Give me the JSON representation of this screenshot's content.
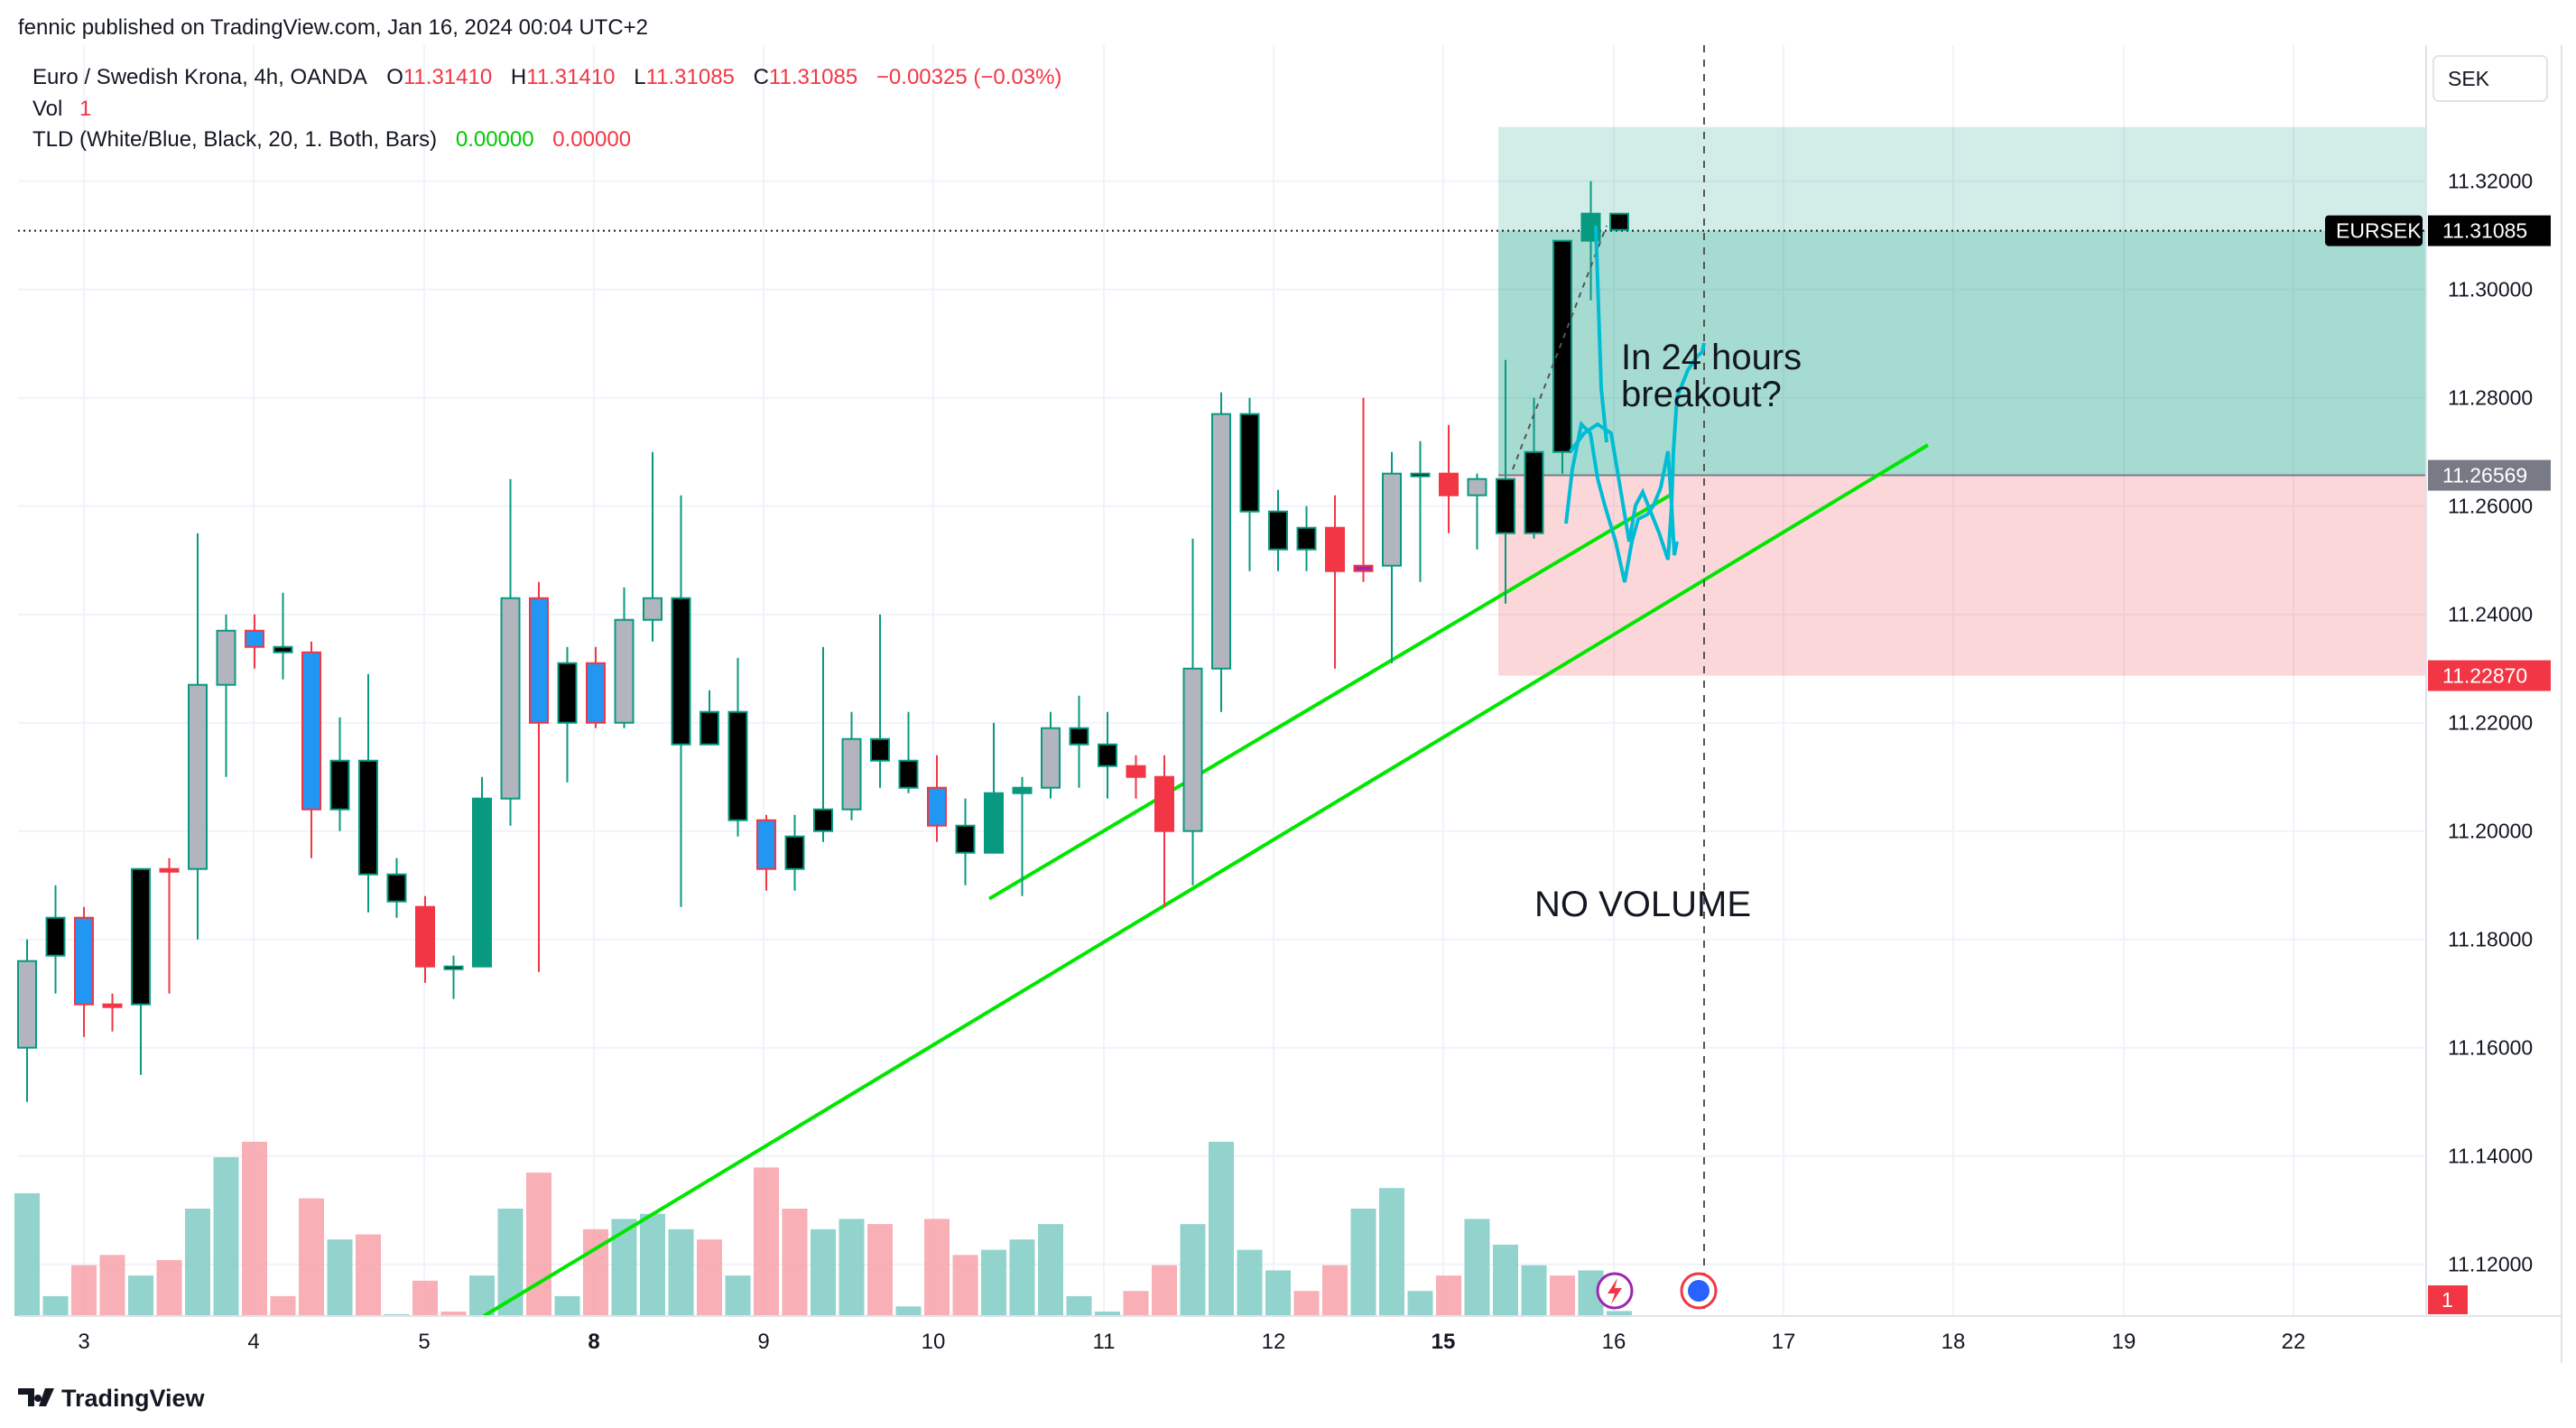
{
  "header": {
    "published_by": "fennic published on TradingView.com, Jan 16, 2024 00:04 UTC+2"
  },
  "legend": {
    "symbol_line": "Euro / Swedish Krona, 4h, OANDA",
    "ohlc": [
      {
        "label": "O",
        "value": "11.31410"
      },
      {
        "label": "H",
        "value": "11.31410"
      },
      {
        "label": "L",
        "value": "11.31085"
      },
      {
        "label": "C",
        "value": "11.31085"
      }
    ],
    "change": "−0.00325 (−0.03%)",
    "vol_label": "Vol",
    "vol_value": "1",
    "indicator_name": "TLD (White/Blue, Black, 20, 1. Both, Bars)",
    "indicator_value_1": "0.00000",
    "indicator_value_2": "0.00000"
  },
  "price_axis": {
    "currency": "SEK",
    "ticks": [
      "11.32000",
      "11.30000",
      "11.28000",
      "11.26000",
      "11.24000",
      "11.22000",
      "11.20000",
      "11.18000",
      "11.16000",
      "11.14000",
      "11.12000"
    ],
    "symbol_tag": "EURSEK",
    "last_price": "11.31085",
    "entry_price": "11.26569",
    "stop_price": "11.22870",
    "volume_tag": "1"
  },
  "time_axis": {
    "labels": [
      {
        "text": "3",
        "bold": false
      },
      {
        "text": "4",
        "bold": false
      },
      {
        "text": "5",
        "bold": false
      },
      {
        "text": "8",
        "bold": true
      },
      {
        "text": "9",
        "bold": false
      },
      {
        "text": "10",
        "bold": false
      },
      {
        "text": "11",
        "bold": false
      },
      {
        "text": "12",
        "bold": false
      },
      {
        "text": "15",
        "bold": true
      },
      {
        "text": "16",
        "bold": false
      },
      {
        "text": "17",
        "bold": false
      },
      {
        "text": "18",
        "bold": false
      },
      {
        "text": "19",
        "bold": false
      },
      {
        "text": "22",
        "bold": false
      }
    ]
  },
  "annotations": {
    "note_line1": "In 24 hours",
    "note_line2": "breakout?",
    "no_volume": "NO VOLUME"
  },
  "footer": {
    "brand": "TradingView"
  },
  "colors": {
    "up": "#089981",
    "down": "#f23645",
    "blue_candle": "#2196f3",
    "white_candle": "#b2b5be",
    "black_candle": "#000000",
    "trendline": "#00e600",
    "projection": "#00bcd4",
    "target_zone": "#089981",
    "stop_zone": "#f23645",
    "vol_up": "#80cbc4",
    "vol_down": "#f7a1a8"
  },
  "chart_data": {
    "type": "candlestick",
    "symbol": "EURSEK",
    "interval": "4h",
    "y_range": [
      11.11,
      11.33
    ],
    "candles": [
      {
        "o": 11.16,
        "h": 11.18,
        "l": 11.15,
        "c": 11.176,
        "f": "white",
        "v": 1230
      },
      {
        "o": 11.177,
        "h": 11.19,
        "l": 11.17,
        "c": 11.184,
        "f": "black",
        "v": 1030
      },
      {
        "o": 11.184,
        "h": 11.186,
        "l": 11.162,
        "c": 11.168,
        "f": "blue",
        "v": 1090
      },
      {
        "o": 11.168,
        "h": 11.17,
        "l": 11.163,
        "c": 11.168,
        "f": "down",
        "v": 1110
      },
      {
        "o": 11.168,
        "h": 11.193,
        "l": 11.155,
        "c": 11.193,
        "f": "black",
        "v": 1070
      },
      {
        "o": 11.193,
        "h": 11.195,
        "l": 11.17,
        "c": 11.193,
        "f": "down",
        "v": 1100
      },
      {
        "o": 11.193,
        "h": 11.255,
        "l": 11.18,
        "c": 11.227,
        "f": "white",
        "v": 1200
      },
      {
        "o": 11.227,
        "h": 11.24,
        "l": 11.21,
        "c": 11.237,
        "f": "white",
        "v": 1300
      },
      {
        "o": 11.237,
        "h": 11.24,
        "l": 11.23,
        "c": 11.234,
        "f": "blue",
        "v": 1330
      },
      {
        "o": 11.234,
        "h": 11.244,
        "l": 11.228,
        "c": 11.233,
        "f": "black",
        "v": 1030
      },
      {
        "o": 11.233,
        "h": 11.235,
        "l": 11.195,
        "c": 11.204,
        "f": "blue",
        "v": 1220
      },
      {
        "o": 11.204,
        "h": 11.221,
        "l": 11.2,
        "c": 11.213,
        "f": "black",
        "v": 1140
      },
      {
        "o": 11.213,
        "h": 11.229,
        "l": 11.185,
        "c": 11.192,
        "f": "black",
        "v": 1150
      },
      {
        "o": 11.192,
        "h": 11.195,
        "l": 11.184,
        "c": 11.187,
        "f": "black",
        "v": 970
      },
      {
        "o": 11.186,
        "h": 11.188,
        "l": 11.172,
        "c": 11.175,
        "f": "down",
        "v": 1060
      },
      {
        "o": 11.175,
        "h": 11.177,
        "l": 11.169,
        "c": 11.175,
        "f": "black",
        "v": 1000
      },
      {
        "o": 11.175,
        "h": 11.21,
        "l": 11.175,
        "c": 11.206,
        "f": "up",
        "v": 1070
      },
      {
        "o": 11.206,
        "h": 11.265,
        "l": 11.201,
        "c": 11.243,
        "f": "white",
        "v": 1200
      },
      {
        "o": 11.243,
        "h": 11.246,
        "l": 11.174,
        "c": 11.22,
        "f": "blue",
        "v": 1270
      },
      {
        "o": 11.231,
        "h": 11.234,
        "l": 11.209,
        "c": 11.22,
        "f": "black",
        "v": 1030
      },
      {
        "o": 11.231,
        "h": 11.234,
        "l": 11.219,
        "c": 11.22,
        "f": "blue",
        "v": 1160
      },
      {
        "o": 11.22,
        "h": 11.245,
        "l": 11.219,
        "c": 11.239,
        "f": "white",
        "v": 1180
      },
      {
        "o": 11.239,
        "h": 11.27,
        "l": 11.235,
        "c": 11.243,
        "f": "white",
        "v": 1190
      },
      {
        "o": 11.243,
        "h": 11.262,
        "l": 11.186,
        "c": 11.216,
        "f": "black",
        "v": 1160
      },
      {
        "o": 11.222,
        "h": 11.226,
        "l": 11.216,
        "c": 11.216,
        "f": "black",
        "v": 1140
      },
      {
        "o": 11.222,
        "h": 11.232,
        "l": 11.199,
        "c": 11.202,
        "f": "black",
        "v": 1070
      },
      {
        "o": 11.202,
        "h": 11.203,
        "l": 11.189,
        "c": 11.193,
        "f": "blue",
        "v": 1280
      },
      {
        "o": 11.199,
        "h": 11.203,
        "l": 11.189,
        "c": 11.193,
        "f": "black",
        "v": 1200
      },
      {
        "o": 11.2,
        "h": 11.234,
        "l": 11.198,
        "c": 11.204,
        "f": "black",
        "v": 1160
      },
      {
        "o": 11.204,
        "h": 11.222,
        "l": 11.202,
        "c": 11.217,
        "f": "white",
        "v": 1180
      },
      {
        "o": 11.217,
        "h": 11.24,
        "l": 11.208,
        "c": 11.213,
        "f": "black",
        "v": 1170
      },
      {
        "o": 11.213,
        "h": 11.222,
        "l": 11.207,
        "c": 11.208,
        "f": "black",
        "v": 1010
      },
      {
        "o": 11.208,
        "h": 11.214,
        "l": 11.198,
        "c": 11.201,
        "f": "blue",
        "v": 1180
      },
      {
        "o": 11.201,
        "h": 11.206,
        "l": 11.19,
        "c": 11.196,
        "f": "black",
        "v": 1110
      },
      {
        "o": 11.196,
        "h": 11.22,
        "l": 11.196,
        "c": 11.207,
        "f": "up",
        "v": 1120
      },
      {
        "o": 11.207,
        "h": 11.21,
        "l": 11.188,
        "c": 11.208,
        "f": "up",
        "v": 1140
      },
      {
        "o": 11.208,
        "h": 11.222,
        "l": 11.206,
        "c": 11.219,
        "f": "white",
        "v": 1170
      },
      {
        "o": 11.219,
        "h": 11.225,
        "l": 11.208,
        "c": 11.216,
        "f": "black",
        "v": 1030
      },
      {
        "o": 11.216,
        "h": 11.222,
        "l": 11.206,
        "c": 11.212,
        "f": "black",
        "v": 1000
      },
      {
        "o": 11.212,
        "h": 11.214,
        "l": 11.206,
        "c": 11.21,
        "f": "down",
        "v": 1040
      },
      {
        "o": 11.21,
        "h": 11.214,
        "l": 11.186,
        "c": 11.2,
        "f": "down",
        "v": 1090
      },
      {
        "o": 11.2,
        "h": 11.254,
        "l": 11.19,
        "c": 11.23,
        "f": "white",
        "v": 1170
      },
      {
        "o": 11.23,
        "h": 11.281,
        "l": 11.222,
        "c": 11.277,
        "f": "white",
        "v": 1330
      },
      {
        "o": 11.277,
        "h": 11.28,
        "l": 11.248,
        "c": 11.259,
        "f": "black",
        "v": 1120
      },
      {
        "o": 11.259,
        "h": 11.263,
        "l": 11.248,
        "c": 11.252,
        "f": "black",
        "v": 1080
      },
      {
        "o": 11.252,
        "h": 11.26,
        "l": 11.248,
        "c": 11.256,
        "f": "black",
        "v": 1040
      },
      {
        "o": 11.256,
        "h": 11.262,
        "l": 11.23,
        "c": 11.248,
        "f": "down",
        "v": 1090
      },
      {
        "o": 11.248,
        "h": 11.28,
        "l": 11.246,
        "c": 11.249,
        "f": "purple",
        "v": 1200
      },
      {
        "o": 11.249,
        "h": 11.27,
        "l": 11.231,
        "c": 11.266,
        "f": "white",
        "v": 1240
      },
      {
        "o": 11.266,
        "h": 11.272,
        "l": 11.246,
        "c": 11.266,
        "f": "black",
        "v": 1040
      },
      {
        "o": 11.266,
        "h": 11.275,
        "l": 11.255,
        "c": 11.262,
        "f": "down",
        "v": 1070
      },
      {
        "o": 11.262,
        "h": 11.266,
        "l": 11.252,
        "c": 11.265,
        "f": "white",
        "v": 1180
      },
      {
        "o": 11.265,
        "h": 11.287,
        "l": 11.242,
        "c": 11.255,
        "f": "black",
        "v": 1130
      },
      {
        "o": 11.255,
        "h": 11.28,
        "l": 11.254,
        "c": 11.27,
        "f": "black",
        "v": 1090
      },
      {
        "o": 11.27,
        "h": 11.309,
        "l": 11.266,
        "c": 11.309,
        "f": "black",
        "v": 1070
      },
      {
        "o": 11.309,
        "h": 11.32,
        "l": 11.298,
        "c": 11.314,
        "f": "up",
        "v": 1080
      },
      {
        "o": 11.314,
        "h": 11.314,
        "l": 11.311,
        "c": 11.311,
        "f": "black",
        "v": 1001
      }
    ],
    "entry": 11.26569,
    "stop": 11.2287,
    "last": 11.31085,
    "target_top": 11.33
  }
}
